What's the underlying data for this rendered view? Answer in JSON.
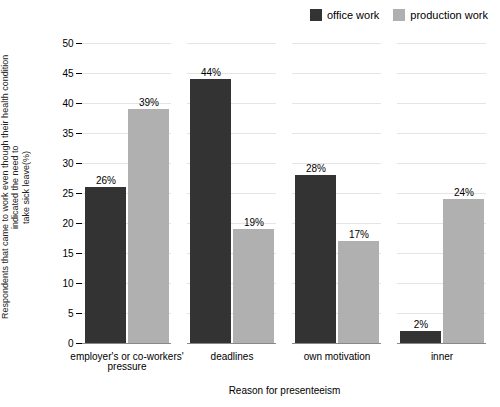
{
  "chart_data": {
    "type": "bar",
    "categories": [
      "employer's or co-workers'\npressure",
      "deadlines",
      "own motivation",
      "inner"
    ],
    "series": [
      {
        "name": "office work",
        "color": "#333333",
        "values": [
          26,
          44,
          28,
          2
        ],
        "value_labels": [
          "26%",
          "44%",
          "28%",
          "2%"
        ]
      },
      {
        "name": "production work",
        "color": "#b0b0b0",
        "values": [
          39,
          19,
          17,
          24
        ],
        "value_labels": [
          "39%",
          "19%",
          "17%",
          "24%"
        ]
      }
    ],
    "xlabel": "Reason for presenteeism",
    "ylabel": "Respondents that came to work even though their health condition indicated the need to\ntake sick leave(%)",
    "ylim": [
      0,
      50
    ],
    "yticks": [
      0,
      5,
      10,
      15,
      20,
      25,
      30,
      35,
      40,
      45,
      50
    ],
    "grid": true,
    "legend": "upper right",
    "data_labels": true
  }
}
